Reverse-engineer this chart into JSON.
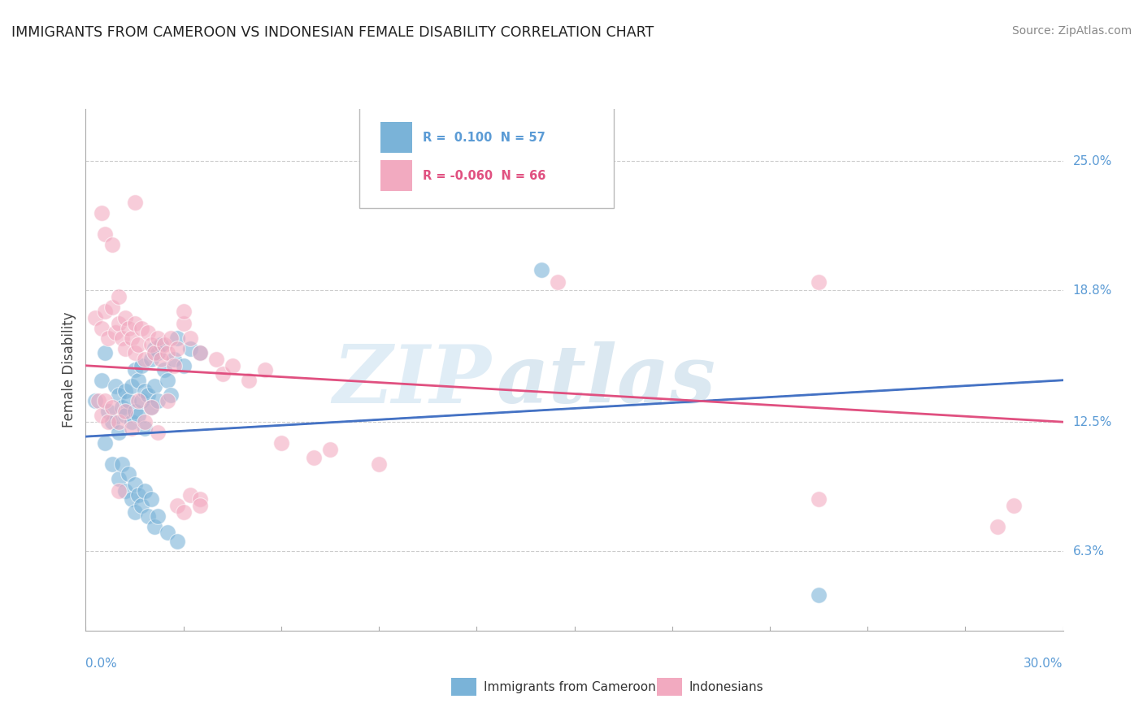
{
  "title": "IMMIGRANTS FROM CAMEROON VS INDONESIAN FEMALE DISABILITY CORRELATION CHART",
  "source": "Source: ZipAtlas.com",
  "ylabel": "Female Disability",
  "y_ticks": [
    6.3,
    12.5,
    18.8,
    25.0
  ],
  "x_range": [
    0.0,
    30.0
  ],
  "y_range": [
    2.5,
    27.5
  ],
  "legend_label_cameroon": "Immigrants from Cameroon",
  "legend_label_indonesian": "Indonesians",
  "blue_color": "#7ab3d8",
  "pink_color": "#f2aac0",
  "blue_trend_color": "#4472c4",
  "pink_trend_color": "#e05080",
  "blue_scatter": [
    [
      0.3,
      13.5
    ],
    [
      0.5,
      14.5
    ],
    [
      0.6,
      15.8
    ],
    [
      0.7,
      13.0
    ],
    [
      0.8,
      12.5
    ],
    [
      0.9,
      14.2
    ],
    [
      1.0,
      13.8
    ],
    [
      1.0,
      12.0
    ],
    [
      1.1,
      13.2
    ],
    [
      1.2,
      14.0
    ],
    [
      1.2,
      12.8
    ],
    [
      1.3,
      13.5
    ],
    [
      1.4,
      14.2
    ],
    [
      1.4,
      12.5
    ],
    [
      1.5,
      15.0
    ],
    [
      1.5,
      13.0
    ],
    [
      1.6,
      14.5
    ],
    [
      1.6,
      12.8
    ],
    [
      1.7,
      15.2
    ],
    [
      1.7,
      13.5
    ],
    [
      1.8,
      14.0
    ],
    [
      1.8,
      12.2
    ],
    [
      1.9,
      13.8
    ],
    [
      2.0,
      15.5
    ],
    [
      2.0,
      13.2
    ],
    [
      2.1,
      16.0
    ],
    [
      2.1,
      14.2
    ],
    [
      2.2,
      15.8
    ],
    [
      2.2,
      13.5
    ],
    [
      2.3,
      16.2
    ],
    [
      2.4,
      15.0
    ],
    [
      2.5,
      14.5
    ],
    [
      2.6,
      13.8
    ],
    [
      2.7,
      15.5
    ],
    [
      2.8,
      16.5
    ],
    [
      3.0,
      15.2
    ],
    [
      3.2,
      16.0
    ],
    [
      3.5,
      15.8
    ],
    [
      0.8,
      10.5
    ],
    [
      1.0,
      9.8
    ],
    [
      1.1,
      10.5
    ],
    [
      1.2,
      9.2
    ],
    [
      1.3,
      10.0
    ],
    [
      1.4,
      8.8
    ],
    [
      1.5,
      9.5
    ],
    [
      1.5,
      8.2
    ],
    [
      1.6,
      9.0
    ],
    [
      1.7,
      8.5
    ],
    [
      1.8,
      9.2
    ],
    [
      1.9,
      8.0
    ],
    [
      2.0,
      8.8
    ],
    [
      2.1,
      7.5
    ],
    [
      2.2,
      8.0
    ],
    [
      2.5,
      7.2
    ],
    [
      2.8,
      6.8
    ],
    [
      0.6,
      11.5
    ],
    [
      14.0,
      19.8
    ],
    [
      22.5,
      4.2
    ]
  ],
  "pink_scatter": [
    [
      0.3,
      17.5
    ],
    [
      0.5,
      17.0
    ],
    [
      0.6,
      17.8
    ],
    [
      0.6,
      21.5
    ],
    [
      0.7,
      16.5
    ],
    [
      0.8,
      18.0
    ],
    [
      0.8,
      21.0
    ],
    [
      0.9,
      16.8
    ],
    [
      1.0,
      17.2
    ],
    [
      1.0,
      18.5
    ],
    [
      1.1,
      16.5
    ],
    [
      1.2,
      17.5
    ],
    [
      1.2,
      16.0
    ],
    [
      1.3,
      17.0
    ],
    [
      1.4,
      16.5
    ],
    [
      1.5,
      15.8
    ],
    [
      1.5,
      17.2
    ],
    [
      1.6,
      16.2
    ],
    [
      1.7,
      17.0
    ],
    [
      1.8,
      15.5
    ],
    [
      1.9,
      16.8
    ],
    [
      2.0,
      16.2
    ],
    [
      2.1,
      15.8
    ],
    [
      2.2,
      16.5
    ],
    [
      2.3,
      15.5
    ],
    [
      2.4,
      16.2
    ],
    [
      2.5,
      15.8
    ],
    [
      2.6,
      16.5
    ],
    [
      2.7,
      15.2
    ],
    [
      2.8,
      16.0
    ],
    [
      3.0,
      17.2
    ],
    [
      3.2,
      16.5
    ],
    [
      3.5,
      15.8
    ],
    [
      0.4,
      13.5
    ],
    [
      0.5,
      12.8
    ],
    [
      0.6,
      13.5
    ],
    [
      0.7,
      12.5
    ],
    [
      0.8,
      13.2
    ],
    [
      1.0,
      12.5
    ],
    [
      1.2,
      13.0
    ],
    [
      1.4,
      12.2
    ],
    [
      1.6,
      13.5
    ],
    [
      1.8,
      12.5
    ],
    [
      2.0,
      13.2
    ],
    [
      2.2,
      12.0
    ],
    [
      2.5,
      13.5
    ],
    [
      2.8,
      8.5
    ],
    [
      3.0,
      8.2
    ],
    [
      3.2,
      9.0
    ],
    [
      3.5,
      8.8
    ],
    [
      4.0,
      15.5
    ],
    [
      4.2,
      14.8
    ],
    [
      4.5,
      15.2
    ],
    [
      5.0,
      14.5
    ],
    [
      5.5,
      15.0
    ],
    [
      6.0,
      11.5
    ],
    [
      7.0,
      10.8
    ],
    [
      7.5,
      11.2
    ],
    [
      9.0,
      10.5
    ],
    [
      14.5,
      19.2
    ],
    [
      22.5,
      8.8
    ],
    [
      28.0,
      7.5
    ],
    [
      0.5,
      22.5
    ],
    [
      3.0,
      17.8
    ],
    [
      1.5,
      23.0
    ],
    [
      22.5,
      19.2
    ],
    [
      28.5,
      8.5
    ],
    [
      3.5,
      8.5
    ],
    [
      1.0,
      9.2
    ]
  ],
  "blue_trend_x": [
    0.0,
    30.0
  ],
  "blue_trend_y_start": 11.8,
  "blue_trend_y_end": 14.5,
  "pink_trend_x": [
    0.0,
    30.0
  ],
  "pink_trend_y_start": 15.2,
  "pink_trend_y_end": 12.5,
  "watermark_text": "ZIP",
  "watermark_text2": "atlas",
  "background_color": "#ffffff",
  "grid_color": "#cccccc",
  "title_color": "#222222",
  "tick_label_color": "#5b9bd5"
}
